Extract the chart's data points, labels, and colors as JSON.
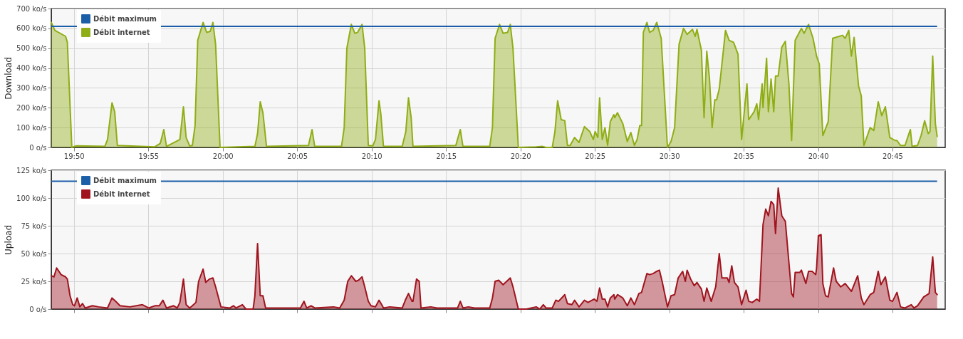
{
  "chart_data": [
    {
      "type": "area",
      "ylabel": "Download",
      "xlim": [
        19.808,
        20.809
      ],
      "ylim": [
        0,
        700
      ],
      "xticks": [
        {
          "value": 19.8333,
          "label": "19:50"
        },
        {
          "value": 19.9167,
          "label": "19:55"
        },
        {
          "value": 20,
          "label": "20:00"
        },
        {
          "value": 20.0833,
          "label": "20:05"
        },
        {
          "value": 20.1667,
          "label": "20:10"
        },
        {
          "value": 20.25,
          "label": "20:15"
        },
        {
          "value": 20.3333,
          "label": "20:20"
        },
        {
          "value": 20.4167,
          "label": "20:25"
        },
        {
          "value": 20.5,
          "label": "20:30"
        },
        {
          "value": 20.5833,
          "label": "20:35"
        },
        {
          "value": 20.6667,
          "label": "20:40"
        },
        {
          "value": 20.75,
          "label": "20:45"
        }
      ],
      "yticks": [
        {
          "value": 0,
          "label": "0 o/s"
        },
        {
          "value": 100,
          "label": "100 ko/s"
        },
        {
          "value": 200,
          "label": "200 ko/s"
        },
        {
          "value": 300,
          "label": "300 ko/s"
        },
        {
          "value": 400,
          "label": "400 ko/s"
        },
        {
          "value": 500,
          "label": "500 ko/s"
        },
        {
          "value": 600,
          "label": "600 ko/s"
        },
        {
          "value": 700,
          "label": "700 ko/s"
        }
      ],
      "grid": true,
      "legend": "top left",
      "series": [
        {
          "name": "Débit maximum",
          "type": "line",
          "color": "#1a5fa8",
          "x": [
            19.808,
            20.8
          ],
          "values": [
            610,
            610
          ]
        },
        {
          "name": "Débit internet",
          "color": "#8fad15",
          "x": [
            19.808,
            19.812,
            19.824,
            19.826,
            19.831,
            19.836,
            19.868,
            19.871,
            19.876,
            19.879,
            19.882,
            19.924,
            19.93,
            19.934,
            19.937,
            19.952,
            19.956,
            19.959,
            19.963,
            19.966,
            19.969,
            19.972,
            19.978,
            19.982,
            19.986,
            19.989,
            19.992,
            19.997,
            20.036,
            20.039,
            20.042,
            20.045,
            20.049,
            20.096,
            20.1,
            20.103,
            20.133,
            20.136,
            20.139,
            20.144,
            20.148,
            20.151,
            20.156,
            20.159,
            20.163,
            20.168,
            20.171,
            20.175,
            20.177,
            20.18,
            20.201,
            20.205,
            20.208,
            20.211,
            20.213,
            20.261,
            20.266,
            20.269,
            20.299,
            20.302,
            20.305,
            20.31,
            20.314,
            20.319,
            20.322,
            20.325,
            20.331,
            20.351,
            20.358,
            20.362,
            20.369,
            20.372,
            20.375,
            20.379,
            20.383,
            20.386,
            20.389,
            20.394,
            20.399,
            20.405,
            20.411,
            20.415,
            20.417,
            20.42,
            20.422,
            20.425,
            20.428,
            20.431,
            20.434,
            20.438,
            20.439,
            20.442,
            20.448,
            20.453,
            20.457,
            20.461,
            20.464,
            20.467,
            20.469,
            20.471,
            20.475,
            20.478,
            20.482,
            20.486,
            20.491,
            20.498,
            20.502,
            20.506,
            20.511,
            20.516,
            20.52,
            20.526,
            20.529,
            20.531,
            20.536,
            20.539,
            20.542,
            20.545,
            20.548,
            20.551,
            20.553,
            20.556,
            20.563,
            20.567,
            20.572,
            20.577,
            20.581,
            20.587,
            20.589,
            20.595,
            20.598,
            20.6,
            20.604,
            20.605,
            20.609,
            20.611,
            20.614,
            20.617,
            20.619,
            20.622,
            20.626,
            20.63,
            20.634,
            20.637,
            20.641,
            20.648,
            20.651,
            20.656,
            20.661,
            20.665,
            20.668,
            20.672,
            20.678,
            20.683,
            20.694,
            20.697,
            20.701,
            20.704,
            20.707,
            20.712,
            20.715,
            20.718,
            20.725,
            20.729,
            20.734,
            20.738,
            20.742,
            20.747,
            20.753,
            20.755,
            20.759,
            20.764,
            20.77,
            20.772,
            20.778,
            20.782,
            20.786,
            20.79,
            20.792,
            20.795,
            20.798,
            20.8
          ],
          "values": [
            630,
            590,
            560,
            530,
            0,
            8,
            5,
            40,
            225,
            180,
            10,
            3,
            20,
            90,
            5,
            40,
            205,
            50,
            8,
            10,
            110,
            540,
            630,
            580,
            585,
            630,
            520,
            0,
            5,
            70,
            230,
            175,
            5,
            10,
            90,
            5,
            5,
            100,
            500,
            620,
            575,
            580,
            620,
            500,
            10,
            8,
            40,
            235,
            170,
            5,
            5,
            80,
            250,
            150,
            5,
            10,
            90,
            5,
            5,
            100,
            550,
            620,
            575,
            580,
            620,
            500,
            0,
            3,
            5,
            0,
            0,
            80,
            235,
            140,
            135,
            10,
            10,
            50,
            25,
            105,
            80,
            40,
            80,
            50,
            250,
            40,
            100,
            10,
            130,
            165,
            150,
            175,
            120,
            30,
            75,
            10,
            40,
            110,
            110,
            580,
            630,
            580,
            590,
            630,
            550,
            0,
            30,
            100,
            520,
            600,
            570,
            595,
            560,
            595,
            490,
            150,
            485,
            350,
            100,
            240,
            240,
            295,
            590,
            540,
            530,
            470,
            40,
            320,
            140,
            180,
            220,
            140,
            320,
            200,
            450,
            180,
            345,
            180,
            360,
            360,
            505,
            535,
            320,
            35,
            540,
            600,
            575,
            620,
            550,
            460,
            420,
            60,
            130,
            550,
            565,
            550,
            590,
            460,
            555,
            310,
            260,
            10,
            100,
            85,
            230,
            160,
            205,
            50,
            35,
            35,
            10,
            10,
            90,
            5,
            10,
            60,
            135,
            70,
            80,
            460,
            120,
            55
          ]
        }
      ]
    },
    {
      "type": "area",
      "ylabel": "Upload",
      "xlim": [
        19.808,
        20.809
      ],
      "ylim": [
        0,
        125
      ],
      "tick_labels": "y",
      "xticks": [
        {
          "value": 19.8333,
          "label": null
        },
        {
          "value": 19.9167,
          "label": null
        },
        {
          "value": 20,
          "label": null
        },
        {
          "value": 20.0833,
          "label": null
        },
        {
          "value": 20.1667,
          "label": null
        },
        {
          "value": 20.25,
          "label": null
        },
        {
          "value": 20.3333,
          "label": null
        },
        {
          "value": 20.4167,
          "label": null
        },
        {
          "value": 20.5,
          "label": null
        },
        {
          "value": 20.5833,
          "label": null
        },
        {
          "value": 20.6667,
          "label": null
        },
        {
          "value": 20.75,
          "label": null
        }
      ],
      "yticks": [
        {
          "value": 0,
          "label": "0 o/s"
        },
        {
          "value": 25,
          "label": "25 ko/s"
        },
        {
          "value": 50,
          "label": "50 ko/s"
        },
        {
          "value": 75,
          "label": "75 ko/s"
        },
        {
          "value": 100,
          "label": "100 ko/s"
        },
        {
          "value": 125,
          "label": "125 ko/s"
        }
      ],
      "grid": true,
      "legend": "top left",
      "series": [
        {
          "name": "Débit maximum",
          "type": "line",
          "color": "#1a5fa8",
          "x": [
            19.808,
            20.8
          ],
          "values": [
            115,
            115
          ]
        },
        {
          "name": "Débit internet",
          "color": "#a0141e",
          "x": [
            19.808,
            19.811,
            19.814,
            19.819,
            19.824,
            19.826,
            19.829,
            19.832,
            19.834,
            19.837,
            19.84,
            19.843,
            19.846,
            19.854,
            19.861,
            19.871,
            19.876,
            19.88,
            19.885,
            19.896,
            19.91,
            19.917,
            19.924,
            19.929,
            19.933,
            19.937,
            19.945,
            19.949,
            19.952,
            19.956,
            19.959,
            19.963,
            19.966,
            19.97,
            19.973,
            19.978,
            19.981,
            19.985,
            19.989,
            19.992,
            19.998,
            20.008,
            20.012,
            20.015,
            20.022,
            20.026,
            20.034,
            20.036,
            20.039,
            20.042,
            20.045,
            20.048,
            20.071,
            20.087,
            20.091,
            20.094,
            20.099,
            20.103,
            20.124,
            20.131,
            20.136,
            20.14,
            20.144,
            20.149,
            20.152,
            20.156,
            20.159,
            20.163,
            20.166,
            20.171,
            20.175,
            20.178,
            20.18,
            20.187,
            20.201,
            20.205,
            20.208,
            20.212,
            20.213,
            20.217,
            20.22,
            20.222,
            20.233,
            20.24,
            20.263,
            20.266,
            20.269,
            20.275,
            20.282,
            20.299,
            20.302,
            20.305,
            20.309,
            20.314,
            20.318,
            20.322,
            20.325,
            20.331,
            20.34,
            20.351,
            20.355,
            20.359,
            20.362,
            20.369,
            20.373,
            20.376,
            20.383,
            20.386,
            20.391,
            20.394,
            20.399,
            20.405,
            20.409,
            20.416,
            20.419,
            20.422,
            20.425,
            20.428,
            20.431,
            20.434,
            20.438,
            20.439,
            20.442,
            20.448,
            20.453,
            20.457,
            20.461,
            20.466,
            20.469,
            20.475,
            20.478,
            20.482,
            20.486,
            20.489,
            20.492,
            20.498,
            20.502,
            20.506,
            20.51,
            20.515,
            20.518,
            20.52,
            20.524,
            20.528,
            20.531,
            20.536,
            20.539,
            20.542,
            20.547,
            20.552,
            20.556,
            20.559,
            20.565,
            20.567,
            20.57,
            20.573,
            20.577,
            20.581,
            20.586,
            20.589,
            20.593,
            20.598,
            20.601,
            20.605,
            20.608,
            20.611,
            20.614,
            20.617,
            20.619,
            20.622,
            20.626,
            20.63,
            20.637,
            20.639,
            20.641,
            20.646,
            20.648,
            20.653,
            20.656,
            20.66,
            20.664,
            20.665,
            20.667,
            20.67,
            20.672,
            20.675,
            20.678,
            20.684,
            20.687,
            20.692,
            20.697,
            20.704,
            20.711,
            20.715,
            20.718,
            20.725,
            20.729,
            20.734,
            20.737,
            20.742,
            20.747,
            20.75,
            20.755,
            20.759,
            20.764,
            20.771,
            20.774,
            20.778,
            20.785,
            20.791,
            20.795,
            20.798,
            20.8
          ],
          "values": [
            30,
            29,
            37,
            31,
            29,
            27,
            12,
            4,
            3,
            10,
            2,
            5,
            1,
            3,
            2,
            1,
            10,
            7,
            3,
            2,
            4,
            1,
            3,
            3,
            8,
            1,
            3,
            1,
            6,
            27,
            4,
            1,
            3,
            6,
            25,
            36,
            24,
            27,
            28,
            20,
            2,
            1,
            3,
            1,
            4,
            0,
            0,
            12,
            59,
            12,
            12,
            1,
            1,
            1,
            7,
            1,
            3,
            1,
            2,
            1,
            8,
            25,
            30,
            25,
            26,
            29,
            20,
            7,
            3,
            2,
            8,
            4,
            1,
            2,
            1,
            9,
            14,
            7,
            7,
            27,
            25,
            1,
            2,
            1,
            1,
            7,
            1,
            2,
            1,
            1,
            10,
            25,
            26,
            22,
            25,
            28,
            20,
            0,
            0,
            2,
            0,
            4,
            1,
            1,
            8,
            7,
            13,
            5,
            4,
            8,
            2,
            8,
            6,
            9,
            7,
            19,
            9,
            9,
            2,
            10,
            13,
            9,
            13,
            10,
            3,
            10,
            4,
            14,
            15,
            32,
            31,
            32,
            34,
            35,
            25,
            2,
            12,
            13,
            28,
            34,
            25,
            35,
            27,
            21,
            24,
            18,
            7,
            19,
            7,
            20,
            50,
            28,
            28,
            24,
            39,
            24,
            20,
            4,
            17,
            7,
            6,
            9,
            7,
            76,
            90,
            84,
            97,
            94,
            68,
            109,
            84,
            79,
            14,
            11,
            33,
            33,
            35,
            23,
            34,
            34,
            31,
            37,
            66,
            67,
            23,
            12,
            11,
            37,
            25,
            20,
            23,
            16,
            30,
            10,
            4,
            13,
            15,
            34,
            22,
            29,
            8,
            7,
            15,
            2,
            1,
            4,
            1,
            3,
            11,
            14,
            47,
            15,
            13
          ]
        }
      ]
    }
  ]
}
